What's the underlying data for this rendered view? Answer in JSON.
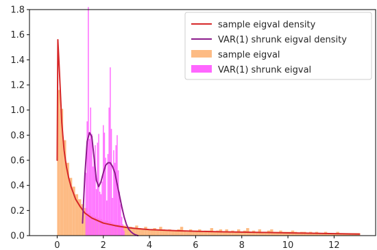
{
  "chart_data": {
    "type": "area",
    "title": "",
    "xlabel": "",
    "ylabel": "",
    "xlim": [
      -1.2,
      13.8
    ],
    "ylim": [
      0,
      1.8
    ],
    "x_ticks": [
      0,
      2,
      4,
      6,
      8,
      10,
      12
    ],
    "y_ticks": [
      0.0,
      0.2,
      0.4,
      0.6,
      0.8,
      1.0,
      1.2,
      1.4,
      1.6,
      1.8
    ],
    "x_tick_labels": [
      "0",
      "2",
      "4",
      "6",
      "8",
      "10",
      "12"
    ],
    "y_tick_labels": [
      "0.0",
      "0.2",
      "0.4",
      "0.6",
      "0.8",
      "1.0",
      "1.2",
      "1.4",
      "1.6",
      "1.8"
    ],
    "grid": false,
    "legend_position": "top-right",
    "colors": {
      "sample_density": "#d62728",
      "shrunk_density": "#8b1a8b",
      "sample_hist": "#fdbb84",
      "shrunk_hist": "#ff66ff"
    },
    "series": [
      {
        "name": "sample eigval density",
        "kind": "line",
        "x": [
          0.0,
          0.03,
          0.06,
          0.1,
          0.15,
          0.2,
          0.3,
          0.4,
          0.5,
          0.6,
          0.8,
          1.0,
          1.2,
          1.5,
          2.0,
          2.5,
          3.0,
          3.5,
          4.0,
          5.0,
          6.0,
          7.0,
          8.0,
          9.0,
          10.0,
          11.0,
          12.0,
          13.1
        ],
        "y": [
          0.6,
          1.56,
          1.45,
          1.3,
          1.1,
          0.9,
          0.68,
          0.55,
          0.46,
          0.39,
          0.29,
          0.23,
          0.18,
          0.14,
          0.1,
          0.08,
          0.065,
          0.055,
          0.048,
          0.04,
          0.035,
          0.031,
          0.028,
          0.025,
          0.022,
          0.019,
          0.016,
          0.012
        ]
      },
      {
        "name": "VAR(1) shrunk eigval density",
        "kind": "line",
        "x": [
          1.1,
          1.2,
          1.3,
          1.4,
          1.5,
          1.6,
          1.7,
          1.8,
          1.9,
          2.0,
          2.1,
          2.2,
          2.3,
          2.4,
          2.5,
          2.6,
          2.7,
          2.8,
          2.9,
          3.0,
          3.1,
          3.2,
          3.3,
          3.4,
          3.5
        ],
        "y": [
          0.1,
          0.48,
          0.75,
          0.82,
          0.79,
          0.62,
          0.44,
          0.39,
          0.43,
          0.5,
          0.56,
          0.58,
          0.58,
          0.55,
          0.5,
          0.41,
          0.32,
          0.23,
          0.15,
          0.09,
          0.05,
          0.03,
          0.015,
          0.006,
          0.0
        ]
      },
      {
        "name": "sample eigval",
        "kind": "histogram",
        "bin_width": 0.13,
        "x": [
          0.065,
          0.195,
          0.325,
          0.455,
          0.585,
          0.715,
          0.845,
          0.975,
          1.105,
          1.235,
          1.365,
          1.495,
          1.625,
          1.755,
          1.885,
          2.015,
          2.145,
          2.275,
          2.405,
          2.535,
          2.665,
          2.795,
          2.925,
          3.055,
          3.185,
          3.315,
          3.445,
          3.575,
          3.705,
          3.835,
          3.965,
          4.095,
          4.225,
          4.355,
          4.485,
          4.615,
          4.745,
          4.875,
          5.005,
          5.135,
          5.265,
          5.395,
          5.525,
          5.655,
          5.785,
          5.915,
          6.045,
          6.175,
          6.305,
          6.435,
          6.565,
          6.695,
          6.825,
          6.955,
          7.085,
          7.215,
          7.345,
          7.475,
          7.605,
          7.735,
          7.865,
          7.995,
          8.125,
          8.255,
          8.385,
          8.515,
          8.645,
          8.775,
          8.905,
          9.035,
          9.165,
          9.295,
          9.425,
          9.555,
          9.685,
          9.815,
          9.945,
          10.075,
          10.205,
          10.335,
          10.465,
          10.595,
          10.725,
          10.855,
          10.985,
          11.115,
          11.245,
          11.375,
          11.505,
          11.635,
          11.765,
          11.895,
          12.025,
          12.155,
          12.285,
          12.415,
          12.545,
          12.675,
          12.805,
          12.935,
          13.065
        ],
        "y": [
          1.16,
          1.01,
          0.76,
          0.58,
          0.46,
          0.39,
          0.33,
          0.29,
          0.25,
          0.22,
          0.18,
          0.16,
          0.15,
          0.14,
          0.13,
          0.12,
          0.12,
          0.11,
          0.1,
          0.09,
          0.09,
          0.08,
          0.08,
          0.07,
          0.07,
          0.06,
          0.08,
          0.06,
          0.05,
          0.07,
          0.05,
          0.05,
          0.06,
          0.04,
          0.07,
          0.05,
          0.04,
          0.05,
          0.04,
          0.04,
          0.05,
          0.07,
          0.04,
          0.03,
          0.05,
          0.04,
          0.04,
          0.05,
          0.03,
          0.04,
          0.04,
          0.06,
          0.03,
          0.04,
          0.05,
          0.03,
          0.05,
          0.03,
          0.04,
          0.03,
          0.05,
          0.03,
          0.04,
          0.06,
          0.03,
          0.04,
          0.03,
          0.05,
          0.03,
          0.03,
          0.04,
          0.05,
          0.03,
          0.03,
          0.04,
          0.03,
          0.03,
          0.03,
          0.04,
          0.03,
          0.02,
          0.03,
          0.03,
          0.02,
          0.03,
          0.02,
          0.03,
          0.02,
          0.02,
          0.03,
          0.02,
          0.02,
          0.02,
          0.03,
          0.02,
          0.02,
          0.02,
          0.02,
          0.02,
          0.02,
          0.02
        ]
      },
      {
        "name": "VAR(1) shrunk eigval",
        "kind": "histogram",
        "bin_width": 0.045,
        "x": [
          1.25,
          1.3,
          1.35,
          1.4,
          1.45,
          1.5,
          1.55,
          1.6,
          1.65,
          1.7,
          1.75,
          1.8,
          1.85,
          1.9,
          1.95,
          2.0,
          2.05,
          2.1,
          2.15,
          2.2,
          2.25,
          2.3,
          2.35,
          2.4,
          2.45,
          2.5,
          2.55,
          2.6,
          2.65,
          2.7,
          2.75,
          2.8,
          2.85,
          2.9
        ],
        "y": [
          0.5,
          0.91,
          1.82,
          0.77,
          1.02,
          0.81,
          0.55,
          0.6,
          0.72,
          0.37,
          0.74,
          0.81,
          0.35,
          0.33,
          0.43,
          0.88,
          0.82,
          0.62,
          0.28,
          0.65,
          1.02,
          1.34,
          0.85,
          0.3,
          0.68,
          0.58,
          0.72,
          0.8,
          0.52,
          0.35,
          0.25,
          0.15,
          0.09,
          0.04
        ]
      }
    ]
  }
}
